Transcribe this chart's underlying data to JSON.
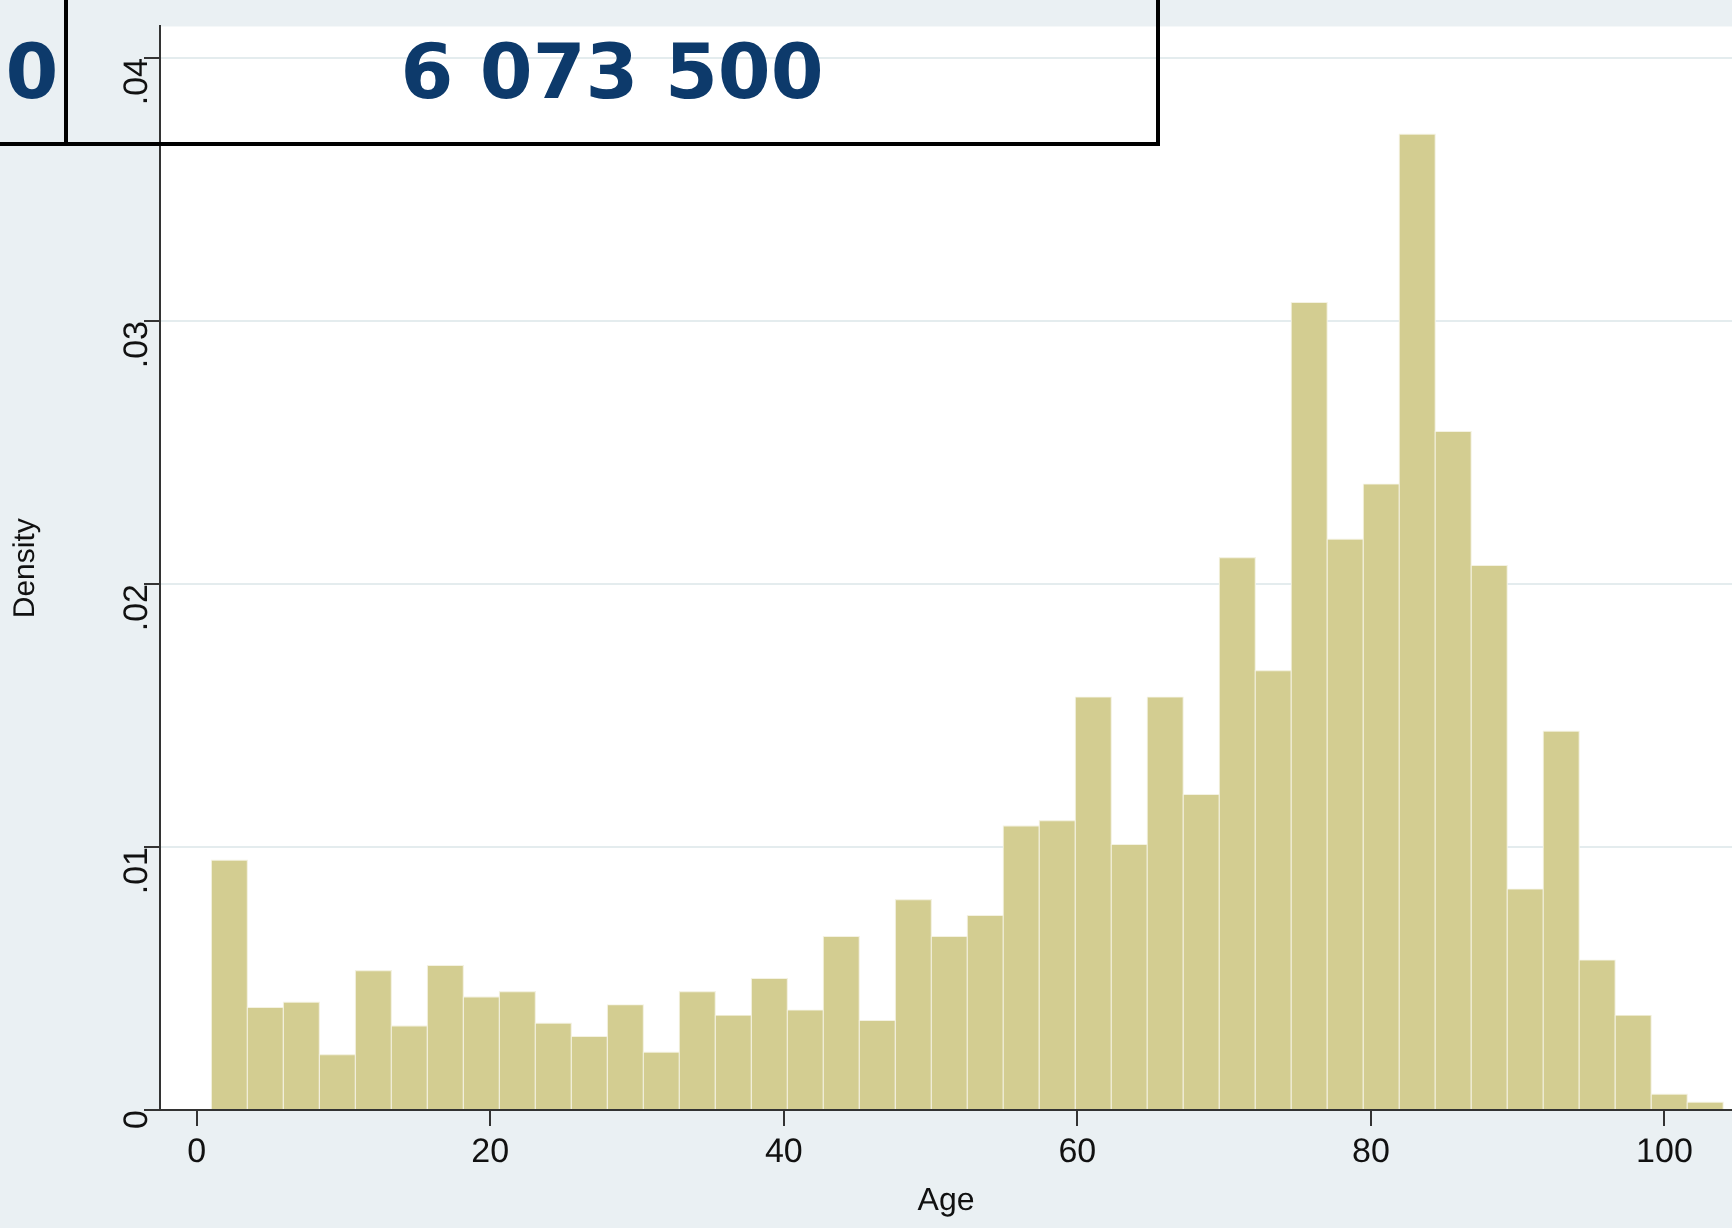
{
  "chart_data": {
    "type": "histogram",
    "xlabel": "Age",
    "ylabel": "Density",
    "bins": [
      1,
      3.45,
      5.9,
      8.36,
      10.81,
      13.26,
      15.71,
      18.17,
      20.62,
      23.07,
      25.52,
      27.98,
      30.43,
      32.88,
      35.33,
      37.79,
      40.24,
      42.69,
      45.14,
      47.6,
      50.05,
      52.5,
      54.95,
      57.4,
      59.86,
      62.31,
      64.76,
      67.21,
      69.67,
      72.12,
      74.57,
      77.02,
      79.48,
      81.93,
      84.38,
      86.83,
      89.29,
      91.74,
      94.19,
      96.64,
      99.1,
      101.55,
      104
    ],
    "values": [
      0.0095,
      0.0039,
      0.0041,
      0.0021,
      0.0053,
      0.0032,
      0.0055,
      0.0043,
      0.0045,
      0.0033,
      0.0028,
      0.004,
      0.0022,
      0.0045,
      0.0036,
      0.005,
      0.0038,
      0.0066,
      0.0034,
      0.008,
      0.0066,
      0.0074,
      0.0108,
      0.011,
      0.0157,
      0.0101,
      0.0157,
      0.012,
      0.021,
      0.0167,
      0.0307,
      0.0217,
      0.0238,
      0.0371,
      0.0258,
      0.0207,
      0.0084,
      0.0144,
      0.0057,
      0.0036,
      0.0006,
      0.0003
    ],
    "color": "#d3cd91",
    "xlim": [
      -2.5,
      104.6
    ],
    "xticks": [
      0,
      20,
      40,
      60,
      80,
      100
    ],
    "ylim": [
      0,
      0.0412
    ],
    "yticks": [
      {
        "value": 0,
        "label": "0"
      },
      {
        "value": 0.01,
        "label": ".01"
      },
      {
        "value": 0.02,
        "label": ".02"
      },
      {
        "value": 0.03,
        "label": ".03"
      },
      {
        "value": 0.04,
        "label": ".04"
      }
    ],
    "grid": "y",
    "annotations": [
      "0",
      "6 073 500"
    ]
  }
}
